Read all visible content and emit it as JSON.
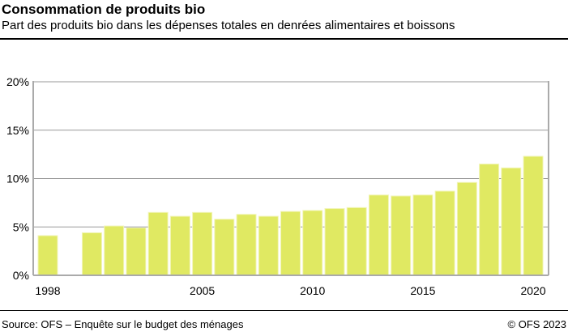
{
  "header": {
    "title": "Consommation de produits bio",
    "subtitle": "Part des produits bio dans les dépenses totales en denrées alimentaires et boissons"
  },
  "footer": {
    "source": "Source: OFS – Enquête sur le budget des ménages",
    "copyright": "© OFS 2023"
  },
  "chart_data": {
    "type": "bar",
    "title": "Consommation de produits bio",
    "subtitle": "Part des produits bio dans les dépenses totales en denrées alimentaires et boissons",
    "categories": [
      1998,
      1999,
      2000,
      2001,
      2002,
      2003,
      2004,
      2005,
      2006,
      2007,
      2008,
      2009,
      2010,
      2011,
      2012,
      2013,
      2014,
      2015,
      2016,
      2017,
      2018,
      2019,
      2020
    ],
    "values": [
      4.1,
      null,
      4.4,
      5.1,
      4.9,
      6.5,
      6.1,
      6.5,
      5.8,
      6.3,
      6.1,
      6.6,
      6.7,
      6.9,
      7.0,
      8.3,
      8.2,
      8.3,
      8.7,
      9.6,
      11.5,
      11.1,
      12.3
    ],
    "ylim": [
      0,
      20
    ],
    "yticks": [
      "0%",
      "5%",
      "10%",
      "15%",
      "20%"
    ],
    "xticks": [
      "1998",
      "2005",
      "2010",
      "2015",
      "2020"
    ],
    "grid": true,
    "bar_color": "#e0e962"
  }
}
